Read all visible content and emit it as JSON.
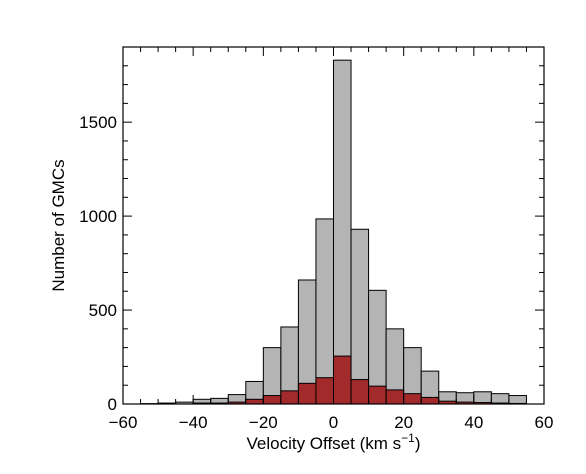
{
  "chart_data": {
    "type": "bar",
    "xlabel": "Velocity Offset (km s",
    "xlabel_superscript": "−1",
    "xlabel_close": ")",
    "ylabel": "Number of GMCs",
    "xlim": [
      -60,
      60
    ],
    "ylim": [
      0,
      1900
    ],
    "xticks": [
      -60,
      -40,
      -20,
      0,
      20,
      40,
      60
    ],
    "xtick_labels": [
      "−60",
      "−40",
      "−20",
      "0",
      "20",
      "40",
      "60"
    ],
    "yticks": [
      0,
      500,
      1000,
      1500
    ],
    "ytick_labels": [
      "0",
      "500",
      "1000",
      "1500"
    ],
    "bin_width": 5,
    "bin_edges": [
      -55,
      -50,
      -45,
      -40,
      -35,
      -30,
      -25,
      -20,
      -15,
      -10,
      -5,
      0,
      5,
      10,
      15,
      20,
      25,
      30,
      35,
      40,
      45,
      50,
      55
    ],
    "grid": false,
    "series": [
      {
        "values": [
          2,
          5,
          10,
          25,
          30,
          50,
          120,
          300,
          410,
          660,
          985,
          1830,
          930,
          605,
          400,
          300,
          175,
          65,
          60,
          65,
          55,
          45
        ],
        "color": "#b4b4b4"
      },
      {
        "values": [
          0,
          0,
          0,
          5,
          5,
          10,
          25,
          45,
          70,
          110,
          140,
          255,
          130,
          95,
          75,
          55,
          35,
          15,
          10,
          8,
          5,
          3
        ],
        "color": "#a32a2a"
      }
    ]
  }
}
